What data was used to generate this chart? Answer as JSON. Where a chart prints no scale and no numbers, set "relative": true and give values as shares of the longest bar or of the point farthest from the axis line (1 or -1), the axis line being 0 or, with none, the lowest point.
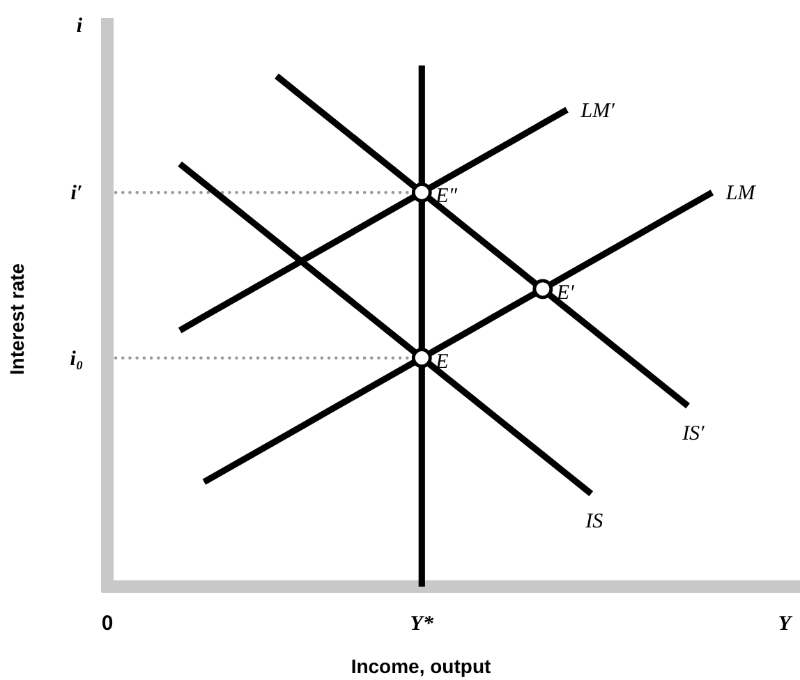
{
  "chart_data": {
    "type": "line",
    "relative": true,
    "xlabel": "Income, output",
    "ylabel": "Interest rate",
    "categories": [
      "0",
      null,
      null,
      null,
      null,
      null,
      null,
      null,
      null,
      null,
      null,
      null,
      null,
      "Y*",
      null,
      null,
      null,
      null,
      null,
      null,
      null,
      null,
      null,
      null,
      null,
      null,
      null,
      null,
      "Y"
    ],
    "series": [
      {
        "name": "LM",
        "color": "#000000",
        "values": [
          null,
          null,
          null,
          null,
          0.205,
          0.232,
          0.259,
          0.286,
          0.313,
          0.34,
          0.367,
          0.394,
          0.421,
          0.448,
          0.475,
          0.502,
          0.529,
          0.556,
          0.583,
          0.61,
          0.637,
          0.664,
          0.691,
          0.718,
          0.745,
          0.772,
          null,
          null,
          null
        ]
      },
      {
        "name": "LM′",
        "color": "#000000",
        "values": [
          null,
          null,
          null,
          0.502,
          0.529,
          0.556,
          0.583,
          0.61,
          0.637,
          0.664,
          0.691,
          0.718,
          0.745,
          0.772,
          0.799,
          0.826,
          0.853,
          0.88,
          0.907,
          0.934,
          null,
          null,
          null,
          null,
          null,
          null,
          null,
          null,
          null
        ]
      },
      {
        "name": "IS",
        "color": "#000000",
        "values": [
          null,
          null,
          null,
          0.828,
          0.79,
          0.752,
          0.714,
          0.676,
          0.638,
          0.6,
          0.562,
          0.524,
          0.486,
          0.448,
          0.41,
          0.372,
          0.334,
          0.296,
          0.258,
          0.22,
          0.182,
          null,
          null,
          null,
          null,
          null,
          null,
          null,
          null
        ]
      },
      {
        "name": "IS′",
        "color": "#000000",
        "values": [
          null,
          null,
          null,
          null,
          null,
          null,
          null,
          1.0,
          0.962,
          0.924,
          0.886,
          0.848,
          0.81,
          0.772,
          0.734,
          0.696,
          0.658,
          0.62,
          0.582,
          0.544,
          0.506,
          0.468,
          0.43,
          0.392,
          0.354,
          null,
          null,
          null,
          null
        ]
      },
      {
        "type": "scatter",
        "color": "#000000",
        "marker": "circle",
        "values": [
          null,
          null,
          null,
          null,
          null,
          null,
          null,
          null,
          null,
          null,
          null,
          null,
          null,
          0.448,
          null,
          null,
          null,
          null,
          0.583,
          null,
          null,
          null,
          null,
          null,
          null,
          null,
          null,
          null,
          null
        ]
      },
      {
        "type": "scatter",
        "color": "#000000",
        "marker": "circle",
        "values": [
          null,
          null,
          null,
          null,
          null,
          null,
          null,
          null,
          null,
          null,
          null,
          null,
          null,
          0.772,
          null,
          null,
          null,
          null,
          null,
          null,
          null,
          null,
          null,
          null,
          null,
          null,
          null,
          null,
          null
        ]
      }
    ],
    "ref_lines": [
      {
        "axis": "x",
        "value": "Y*",
        "color": "#000000"
      },
      {
        "axis": "y",
        "value": 0.448,
        "label": "i₀",
        "color": "#999999",
        "line_style": "dotted"
      },
      {
        "axis": "y",
        "value": 0.772,
        "label": "i′",
        "color": "#999999",
        "line_style": "dotted"
      }
    ],
    "annotations": [
      {
        "text": "E",
        "x": "Y*",
        "y": 0.448
      },
      {
        "text": "E″",
        "x": "Y*",
        "y": 0.772
      },
      "E′",
      "i"
    ]
  }
}
